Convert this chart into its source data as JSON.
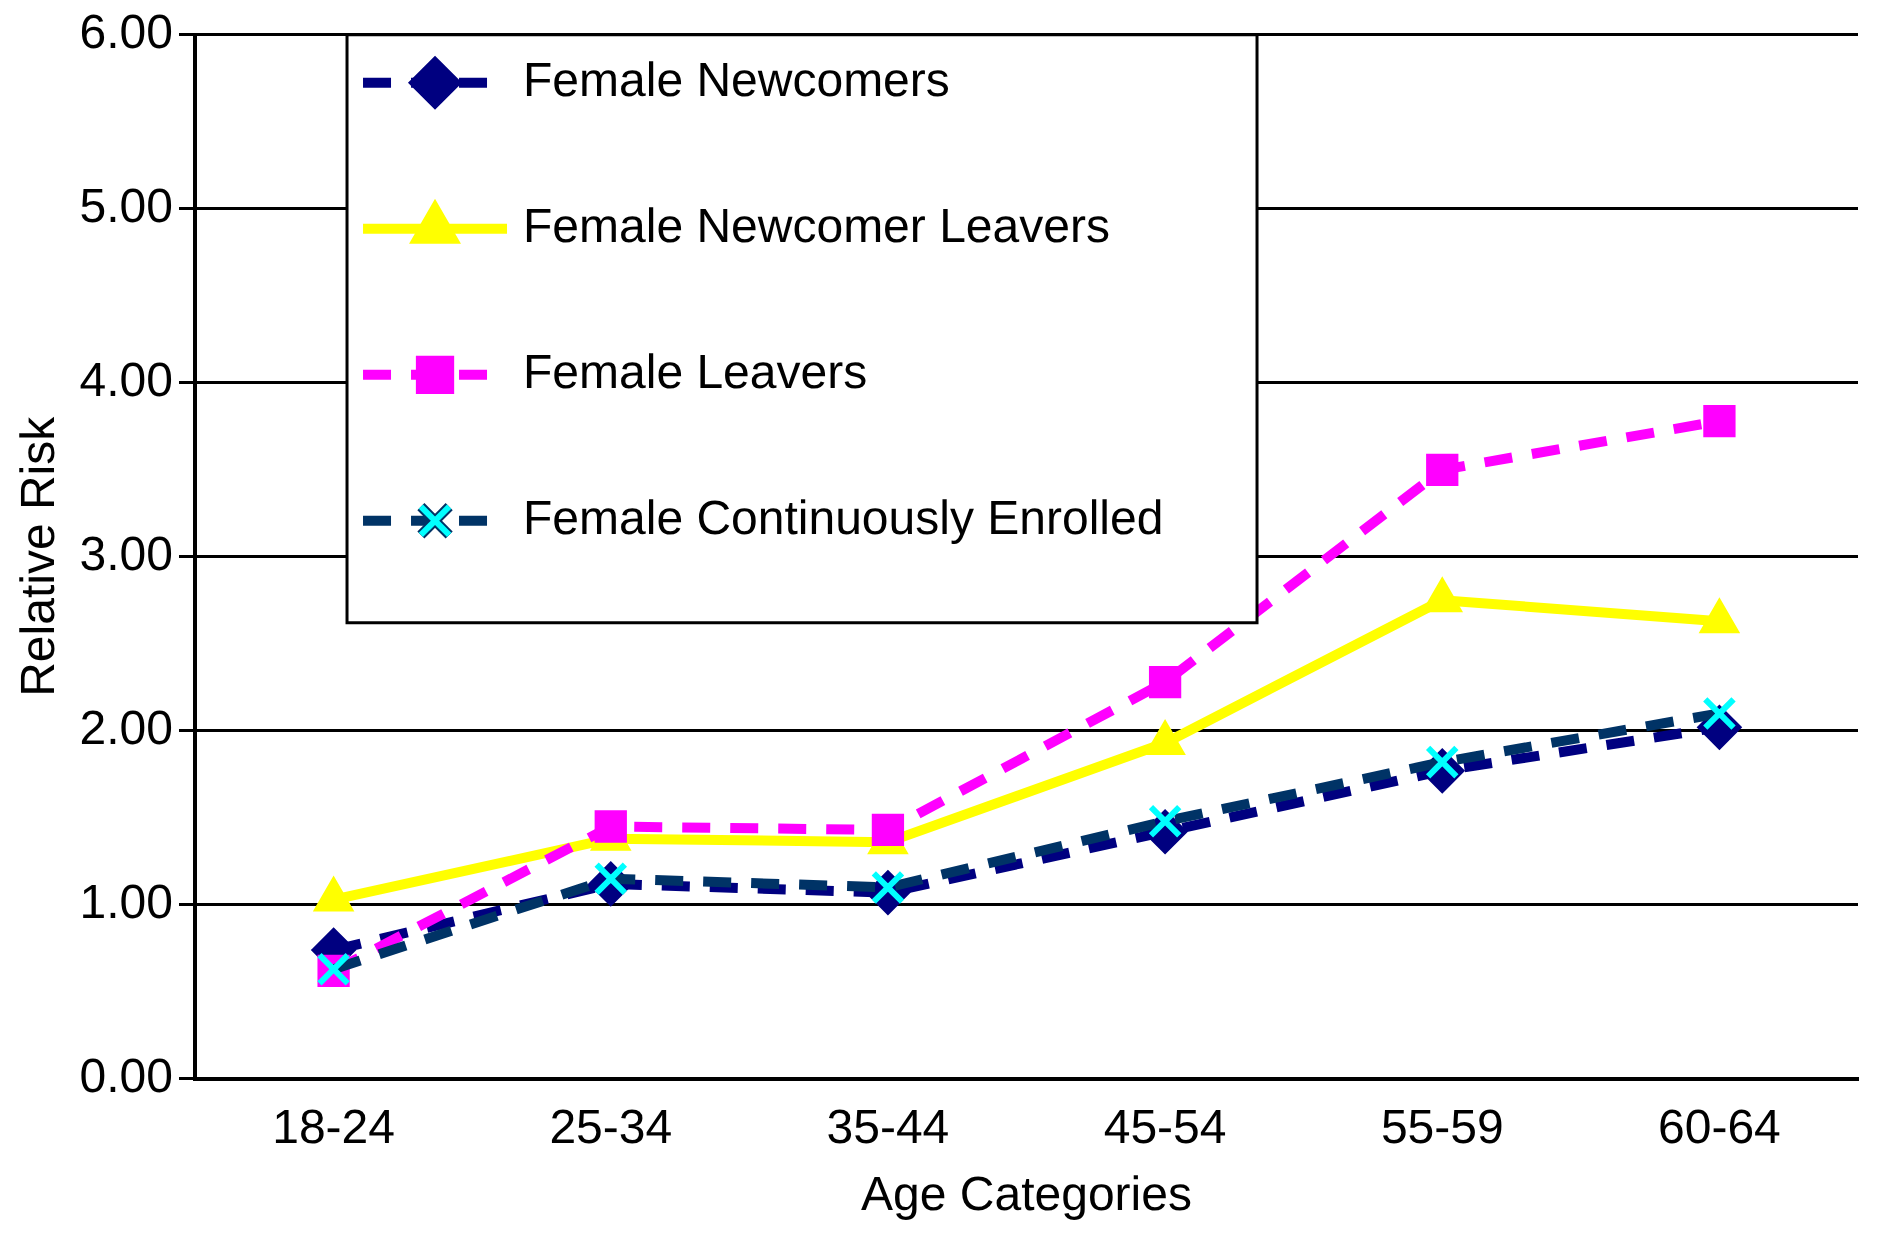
{
  "chart_data": {
    "type": "line",
    "xlabel": "Age Categories",
    "ylabel": "Relative Risk",
    "categories": [
      "18-24",
      "25-34",
      "35-44",
      "45-54",
      "55-59",
      "60-64"
    ],
    "series": [
      {
        "name": "Female Newcomers",
        "color": "#000080",
        "values": [
          0.74,
          1.12,
          1.07,
          1.42,
          1.77,
          2.02
        ],
        "marker": "diamond",
        "line_style": "dashed"
      },
      {
        "name": "Female Newcomer Leavers",
        "color": "#ffff00",
        "values": [
          1.03,
          1.38,
          1.36,
          1.93,
          2.75,
          2.63
        ],
        "marker": "triangle",
        "line_style": "solid"
      },
      {
        "name": "Female Leavers",
        "color": "#ff00ff",
        "values": [
          0.62,
          1.45,
          1.43,
          2.28,
          3.5,
          3.78
        ],
        "marker": "square",
        "line_style": "dashed"
      },
      {
        "name": "Female Continuously Enrolled",
        "color": "#003366",
        "values": [
          0.63,
          1.15,
          1.1,
          1.48,
          1.82,
          2.1
        ],
        "colors": [
          "#00ffff",
          "#00ffff",
          "#00ffff",
          "#00ffff",
          "#00ffff",
          "#00ffff"
        ],
        "marker": "cross",
        "line_style": "dashed"
      }
    ],
    "ylim": [
      0,
      6
    ],
    "yticks": [
      {
        "value": 0,
        "label": "0.00"
      },
      {
        "value": 1,
        "label": "1.00"
      },
      {
        "value": 2,
        "label": "2.00"
      },
      {
        "value": 3,
        "label": "3.00"
      },
      {
        "value": 4,
        "label": "4.00"
      },
      {
        "value": 5,
        "label": "5.00"
      },
      {
        "value": 6,
        "label": "6.00"
      }
    ],
    "grid": "y",
    "legend": "top left"
  }
}
